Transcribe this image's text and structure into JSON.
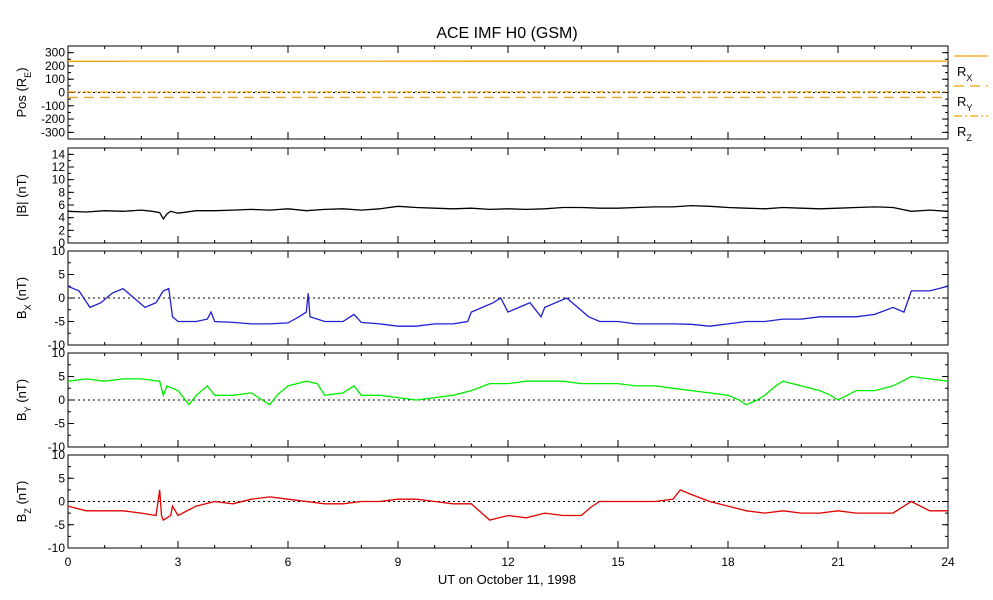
{
  "title": "ACE IMF H0 (GSM)",
  "colors": {
    "black": "#000000",
    "blue": "#2020d0",
    "green": "#00ee00",
    "red": "#e00000",
    "orange": "#f0a000"
  },
  "chart_data": [
    {
      "type": "line",
      "id": "pos",
      "ylabel_main": "Pos (R",
      "ylabel_sub": "E",
      "ylabel_tail": ")",
      "ylim": [
        -350,
        350
      ],
      "yticks": [
        -300,
        -200,
        -100,
        0,
        100,
        200,
        300
      ],
      "reference_line": 0,
      "series": [
        {
          "name": "X",
          "label_main": "R",
          "label_sub": "X",
          "color": "#f0a000",
          "dash": "none",
          "x": [
            0,
            24
          ],
          "values": [
            235,
            236
          ]
        },
        {
          "name": "Y",
          "label_main": "R",
          "label_sub": "Y",
          "color": "#f0a000",
          "dash": "10,6",
          "x": [
            0,
            24
          ],
          "values": [
            -38,
            -38
          ]
        },
        {
          "name": "Z",
          "label_main": "R",
          "label_sub": "Z",
          "color": "#f0a000",
          "dash": "8,3,2,3",
          "x": [
            0,
            24
          ],
          "values": [
            4,
            5
          ]
        }
      ]
    },
    {
      "type": "line",
      "id": "bmag",
      "ylabel_main": "|B| (nT)",
      "ylabel_sub": "",
      "ylabel_tail": "",
      "ylim": [
        0,
        15
      ],
      "yticks": [
        0,
        2,
        4,
        6,
        8,
        10,
        12,
        14
      ],
      "series": [
        {
          "color": "#000000",
          "x": [
            0,
            0.5,
            1,
            1.5,
            2,
            2.3,
            2.5,
            2.6,
            2.7,
            2.8,
            3,
            3.5,
            4,
            4.5,
            5,
            5.5,
            6,
            6.5,
            7,
            7.5,
            8,
            8.5,
            9,
            9.5,
            10,
            10.5,
            11,
            11.5,
            12,
            12.5,
            13,
            13.5,
            14,
            14.5,
            15,
            15.5,
            16,
            16.5,
            17,
            17.5,
            18,
            18.5,
            19,
            19.5,
            20,
            20.5,
            21,
            21.5,
            22,
            22.5,
            23,
            23.5,
            24
          ],
          "values": [
            5.0,
            4.9,
            5.1,
            5.0,
            5.2,
            5.0,
            4.8,
            3.8,
            4.6,
            5.0,
            4.7,
            5.1,
            5.1,
            5.2,
            5.3,
            5.2,
            5.4,
            5.1,
            5.3,
            5.4,
            5.2,
            5.4,
            5.8,
            5.6,
            5.5,
            5.4,
            5.5,
            5.3,
            5.4,
            5.3,
            5.4,
            5.6,
            5.6,
            5.5,
            5.5,
            5.6,
            5.7,
            5.7,
            5.9,
            5.8,
            5.6,
            5.5,
            5.4,
            5.6,
            5.5,
            5.4,
            5.5,
            5.6,
            5.7,
            5.6,
            5.0,
            5.2,
            5.0
          ]
        }
      ]
    },
    {
      "type": "line",
      "id": "bx",
      "ylabel_main": "B",
      "ylabel_sub": "X",
      "ylabel_tail": " (nT)",
      "ylim": [
        -10,
        10
      ],
      "yticks": [
        -10,
        -5,
        0,
        5,
        10
      ],
      "reference_line": 0,
      "series": [
        {
          "color": "#2020d0",
          "x": [
            0,
            0.3,
            0.6,
            0.9,
            1.2,
            1.5,
            1.8,
            2.1,
            2.4,
            2.6,
            2.75,
            2.85,
            3,
            3.5,
            3.8,
            3.9,
            4,
            4.5,
            5,
            5.5,
            6,
            6.3,
            6.5,
            6.55,
            6.6,
            7,
            7.5,
            7.8,
            8,
            8.5,
            9,
            9.5,
            10,
            10.5,
            10.9,
            11,
            11.3,
            11.6,
            11.8,
            12,
            12.3,
            12.6,
            12.9,
            13,
            13.3,
            13.6,
            13.9,
            14.2,
            14.5,
            15,
            15.5,
            16,
            16.5,
            17,
            17.5,
            18,
            18.5,
            19,
            19.5,
            20,
            20.5,
            21,
            21.5,
            22,
            22.5,
            22.8,
            23,
            23.5,
            24
          ],
          "values": [
            2.5,
            1.5,
            -2,
            -1,
            1,
            2,
            0,
            -2,
            -1,
            1.5,
            2,
            -4,
            -5,
            -5,
            -4.5,
            -3,
            -5,
            -5.2,
            -5.5,
            -5.5,
            -5.3,
            -4,
            -3,
            1,
            -4,
            -5,
            -5,
            -3.5,
            -5.2,
            -5.5,
            -6,
            -6,
            -5.5,
            -5.5,
            -5,
            -3,
            -2,
            -1,
            0,
            -3,
            -2,
            -1,
            -4,
            -2,
            -1,
            0,
            -2,
            -4,
            -5,
            -5,
            -5.5,
            -5.5,
            -5.5,
            -5.6,
            -6,
            -5.5,
            -5,
            -5,
            -4.5,
            -4.5,
            -4,
            -4,
            -4,
            -3.5,
            -2,
            -3,
            1.5,
            1.5,
            2.5
          ]
        }
      ]
    },
    {
      "type": "line",
      "id": "by",
      "ylabel_main": "B",
      "ylabel_sub": "Y",
      "ylabel_tail": " (nT)",
      "ylim": [
        -10,
        10
      ],
      "yticks": [
        -10,
        -5,
        0,
        5,
        10
      ],
      "reference_line": 0,
      "series": [
        {
          "color": "#00ee00",
          "x": [
            0,
            0.5,
            1,
            1.5,
            2,
            2.5,
            2.6,
            2.7,
            3,
            3.3,
            3.5,
            3.8,
            4,
            4.5,
            5,
            5.3,
            5.5,
            5.7,
            6,
            6.5,
            6.8,
            7,
            7.5,
            7.8,
            8,
            8.5,
            9,
            9.5,
            10,
            10.5,
            11,
            11.5,
            12,
            12.5,
            13,
            13.5,
            14,
            14.5,
            15,
            15.5,
            16,
            16.5,
            17,
            17.5,
            18,
            18.3,
            18.5,
            18.8,
            19,
            19.3,
            19.5,
            20,
            20.5,
            20.8,
            21,
            21.5,
            22,
            22.5,
            23,
            23.5,
            24
          ],
          "values": [
            4,
            4.5,
            4,
            4.5,
            4.5,
            4,
            1,
            3,
            2,
            -1,
            1,
            3,
            1,
            1,
            1.5,
            0,
            -1,
            1,
            3,
            4,
            3.5,
            1,
            1.5,
            3,
            1,
            1,
            0.5,
            0,
            0.5,
            1,
            2,
            3.5,
            3.5,
            4,
            4,
            4,
            3.5,
            3.5,
            3.5,
            3,
            3,
            2.5,
            2,
            1.5,
            1,
            0,
            -1,
            0,
            1,
            3,
            4,
            3,
            2,
            1,
            0,
            2,
            2,
            3,
            5,
            4.5,
            4
          ]
        }
      ]
    },
    {
      "type": "line",
      "id": "bz",
      "ylabel_main": "B",
      "ylabel_sub": "Z",
      "ylabel_tail": " (nT)",
      "ylim": [
        -10,
        10
      ],
      "yticks": [
        -10,
        -5,
        0,
        5,
        10
      ],
      "reference_line": 0,
      "series": [
        {
          "color": "#e00000",
          "x": [
            0,
            0.5,
            1,
            1.5,
            2,
            2.4,
            2.5,
            2.55,
            2.6,
            2.8,
            2.85,
            3,
            3.5,
            4,
            4.5,
            5,
            5.5,
            6,
            6.5,
            7,
            7.5,
            8,
            8.5,
            9,
            9.5,
            10,
            10.5,
            11,
            11.5,
            12,
            12.5,
            13,
            13.5,
            14,
            14.3,
            14.5,
            15,
            15.5,
            16,
            16.5,
            16.7,
            17,
            17.5,
            18,
            18.5,
            19,
            19.5,
            20,
            20.5,
            21,
            21.5,
            22,
            22.5,
            22.8,
            23,
            23.5,
            24
          ],
          "values": [
            -1,
            -2,
            -2,
            -2,
            -2.5,
            -3,
            2.5,
            -3,
            -4,
            -3,
            -1,
            -3,
            -1,
            0,
            -0.5,
            0.5,
            1,
            0.5,
            0,
            -0.5,
            -0.5,
            0,
            0,
            0.5,
            0.5,
            0,
            -0.5,
            -0.5,
            -4,
            -3,
            -3.5,
            -2.5,
            -3,
            -3,
            -1,
            0,
            0,
            0,
            0,
            0.5,
            2.5,
            1.5,
            0,
            -1,
            -2,
            -2.5,
            -2,
            -2.5,
            -2.5,
            -2,
            -2.5,
            -2.5,
            -2.5,
            -1,
            0,
            -2,
            -2
          ]
        }
      ]
    }
  ],
  "xaxis": {
    "xlim": [
      0,
      24
    ],
    "xticks": [
      0,
      3,
      6,
      9,
      12,
      15,
      18,
      21,
      24
    ],
    "xlabel": "UT on October 11, 1998"
  }
}
